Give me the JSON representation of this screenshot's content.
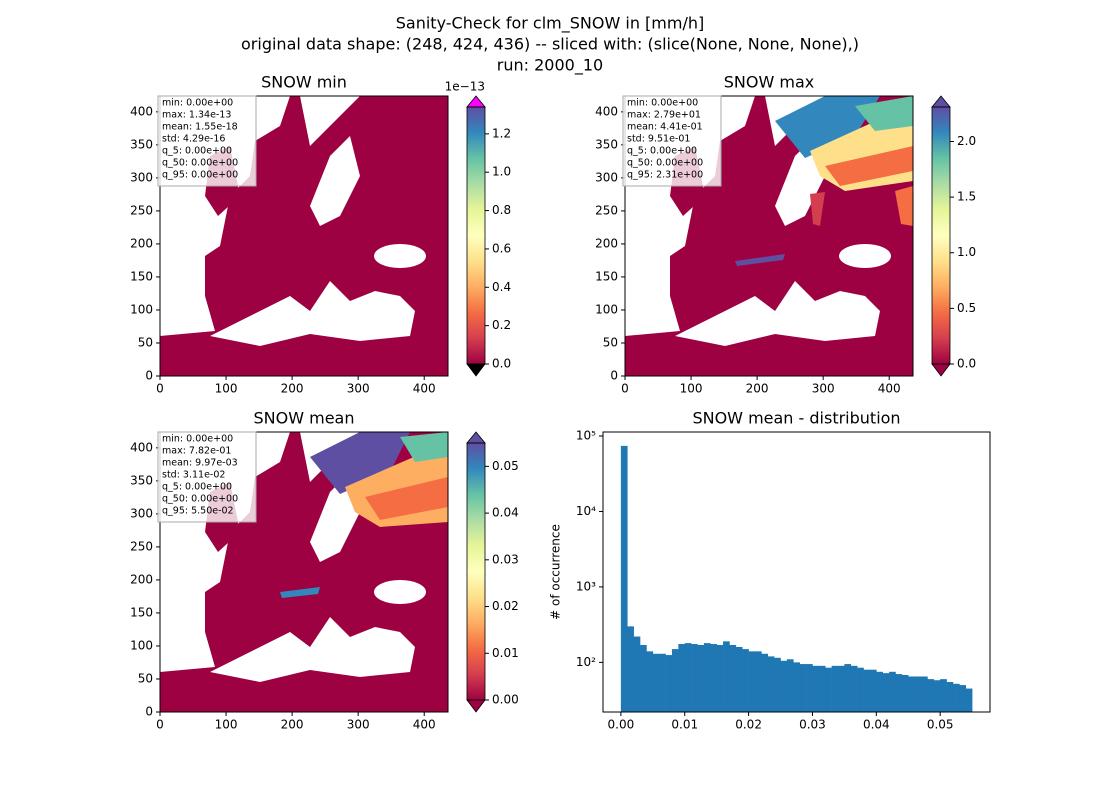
{
  "title": [
    "Sanity-Check for clm_SNOW in [mm/h]",
    "original data shape: (248, 424, 436) -- sliced with: (slice(None, None, None),)",
    "run: 2000_10"
  ],
  "chart_data": [
    {
      "type": "heatmap",
      "title": "SNOW min",
      "colormap": "Spectral",
      "xlim": [
        0,
        436
      ],
      "ylim": [
        0,
        424
      ],
      "xticks": [
        0,
        100,
        200,
        300,
        400
      ],
      "yticks": [
        0,
        50,
        100,
        150,
        200,
        250,
        300,
        350,
        400
      ],
      "clim": [
        0,
        1.34
      ],
      "cticks": [
        {
          "value": 0,
          "label": "0.0"
        },
        0.2,
        0.4,
        0.6,
        0.8,
        {
          "value": 1,
          "label": "1.0"
        },
        1.2
      ],
      "coffset": "1e−13",
      "extend": "both",
      "under_color": "#000000",
      "over_color": "#ff00ff",
      "stats": [
        "min: 0.00e+00",
        "max: 1.34e-13",
        "mean: 1.55e-18",
        "std: 4.29e-16",
        "q_5: 0.00e+00",
        "q_50: 0.00e+00",
        "q_95: 0.00e+00"
      ]
    },
    {
      "type": "heatmap",
      "title": "SNOW max",
      "colormap": "Spectral",
      "xlim": [
        0,
        436
      ],
      "ylim": [
        0,
        424
      ],
      "xticks": [
        0,
        100,
        200,
        300,
        400
      ],
      "yticks": [
        0,
        50,
        100,
        150,
        200,
        250,
        300,
        350,
        400
      ],
      "clim": [
        0,
        2.31
      ],
      "cticks": [
        {
          "value": 0,
          "label": "0.0"
        },
        0.5,
        {
          "value": 1,
          "label": "1.0"
        },
        1.5,
        {
          "value": 2,
          "label": "2.0"
        }
      ],
      "extend": "both",
      "under_color": "#9e0142",
      "over_color": "#5e4fa2",
      "stats": [
        "min: 0.00e+00",
        "max: 2.79e+01",
        "mean: 4.41e-01",
        "std: 9.51e-01",
        "q_5: 0.00e+00",
        "q_50: 0.00e+00",
        "q_95: 2.31e+00"
      ]
    },
    {
      "type": "heatmap",
      "title": "SNOW mean",
      "colormap": "Spectral",
      "xlim": [
        0,
        436
      ],
      "ylim": [
        0,
        424
      ],
      "xticks": [
        0,
        100,
        200,
        300,
        400
      ],
      "yticks": [
        0,
        50,
        100,
        150,
        200,
        250,
        300,
        350,
        400
      ],
      "clim": [
        0,
        0.055
      ],
      "cticks": [
        {
          "value": 0,
          "label": "0.00"
        },
        0.01,
        0.02,
        0.03,
        0.04,
        0.05
      ],
      "extend": "both",
      "under_color": "#9e0142",
      "over_color": "#5e4fa2",
      "stats": [
        "min: 0.00e+00",
        "max: 7.82e-01",
        "mean: 9.97e-03",
        "std: 3.11e-02",
        "q_5: 0.00e+00",
        "q_50: 0.00e+00",
        "q_95: 5.50e-02"
      ]
    },
    {
      "type": "histogram",
      "title": "SNOW mean - distribution",
      "y_label": "# of occurrence",
      "color": "#1f77b4",
      "log_y": true,
      "bins": [
        0,
        0.001,
        0.002,
        0.003,
        0.004,
        0.005,
        0.006,
        0.007,
        0.008,
        0.009,
        0.01,
        0.011,
        0.012,
        0.013,
        0.014,
        0.015,
        0.016,
        0.017,
        0.018,
        0.019,
        0.02,
        0.021,
        0.022,
        0.023,
        0.024,
        0.025,
        0.026,
        0.027,
        0.028,
        0.029,
        0.03,
        0.031,
        0.032,
        0.033,
        0.034,
        0.035,
        0.036,
        0.037,
        0.038,
        0.039,
        0.04,
        0.041,
        0.042,
        0.043,
        0.044,
        0.045,
        0.046,
        0.047,
        0.048,
        0.049,
        0.05,
        0.051,
        0.052,
        0.053,
        0.054,
        0.055
      ],
      "values": [
        74000,
        300,
        220,
        170,
        140,
        130,
        130,
        125,
        150,
        175,
        180,
        175,
        170,
        180,
        175,
        170,
        190,
        170,
        160,
        150,
        140,
        140,
        130,
        120,
        115,
        105,
        110,
        100,
        95,
        95,
        90,
        90,
        85,
        90,
        90,
        95,
        90,
        85,
        80,
        80,
        75,
        72,
        75,
        70,
        68,
        65,
        65,
        65,
        60,
        58,
        60,
        55,
        52,
        50,
        45
      ],
      "xlim": [
        -0.0028,
        0.0578
      ],
      "ylim": [
        22,
        113000
      ],
      "xticks": [
        {
          "value": 0,
          "label": "0.00"
        },
        0.01,
        0.02,
        0.03,
        0.04,
        0.05
      ],
      "yticks": [
        {
          "value": 100,
          "label": "10²"
        },
        {
          "value": 1000,
          "label": "10³"
        },
        {
          "value": 10000,
          "label": "10⁴"
        },
        {
          "value": 100000,
          "label": "10⁵"
        }
      ]
    }
  ]
}
